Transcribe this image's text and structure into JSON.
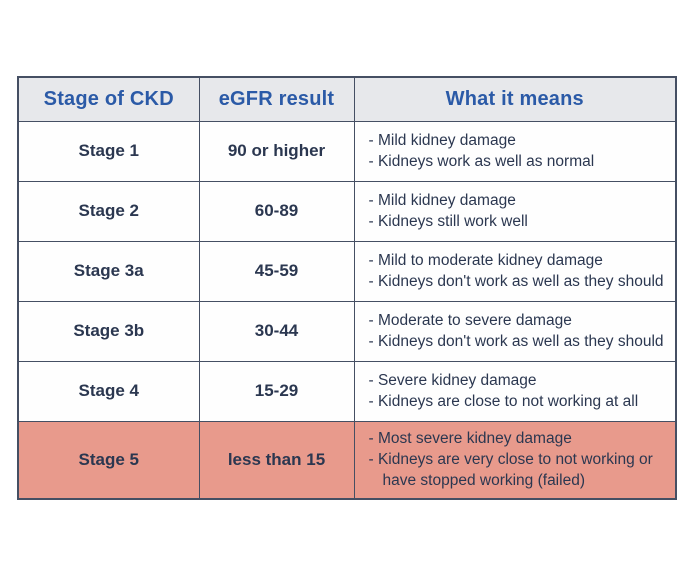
{
  "page": {
    "background_color": "#ffffff"
  },
  "table": {
    "colors": {
      "header_bg": "#e7e8eb",
      "header_text": "#2b5aa7",
      "body_text": "#2b3750",
      "border": "#454f63",
      "stage5_row_bg": "#e89a8c"
    },
    "headers": [
      "Stage of CKD",
      "eGFR result",
      "What it means"
    ],
    "rows": [
      {
        "stage": "Stage 1",
        "egfr": "90 or higher",
        "bullets": [
          "- Mild kidney damage",
          "- Kidneys work as well as normal"
        ],
        "highlighted": false
      },
      {
        "stage": "Stage 2",
        "egfr": "60-89",
        "bullets": [
          "- Mild kidney damage",
          "- Kidneys still work well"
        ],
        "highlighted": false
      },
      {
        "stage": "Stage 3a",
        "egfr": "45-59",
        "bullets": [
          "- Mild to moderate kidney damage",
          "- Kidneys don't work as well as they should"
        ],
        "highlighted": false
      },
      {
        "stage": "Stage 3b",
        "egfr": "30-44",
        "bullets": [
          "- Moderate to severe damage",
          "- Kidneys don't work as well as they should"
        ],
        "highlighted": false
      },
      {
        "stage": "Stage 4",
        "egfr": "15-29",
        "bullets": [
          "- Severe kidney damage",
          "- Kidneys are close to not working at all"
        ],
        "highlighted": false
      },
      {
        "stage": "Stage 5",
        "egfr": "less than 15",
        "bullets": [
          "- Most severe kidney damage",
          "- Kidneys are very close to not working or have stopped working (failed)"
        ],
        "highlighted": true
      }
    ]
  }
}
